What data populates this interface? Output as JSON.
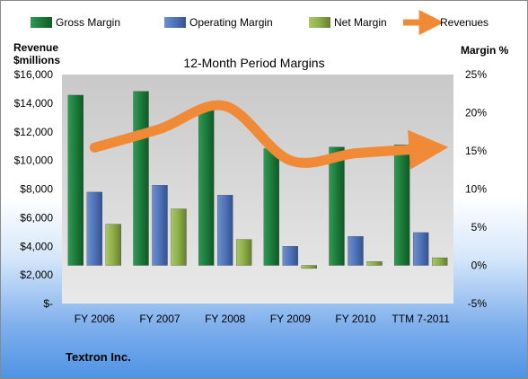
{
  "chart_data": {
    "type": "bar",
    "title": "12-Month Period Margins",
    "footer": "Textron Inc.",
    "categories": [
      "FY 2006",
      "FY 2007",
      "FY 2008",
      "FY 2009",
      "FY 2010",
      "TTM 7-2011"
    ],
    "left_axis": {
      "title_line1": "Revenue",
      "title_line2": "$millions",
      "range": [
        0,
        16000
      ],
      "ticks": [
        "$-",
        "$2,000",
        "$4,000",
        "$6,000",
        "$8,000",
        "$10,000",
        "$12,000",
        "$14,000",
        "$16,000"
      ]
    },
    "right_axis": {
      "title": "Margin %",
      "range": [
        -5,
        25
      ],
      "ticks": [
        "-5%",
        "0%",
        "5%",
        "10%",
        "15%",
        "20%",
        "25%"
      ]
    },
    "series": [
      {
        "name": "Gross Margin",
        "type": "bar",
        "axis": "right",
        "color": "#1f7a3c",
        "values": [
          22.3,
          22.8,
          20.5,
          15.3,
          15.5,
          15.8
        ]
      },
      {
        "name": "Operating Margin",
        "type": "bar",
        "axis": "right",
        "color": "#4f73b8",
        "values": [
          9.6,
          10.5,
          9.2,
          2.5,
          3.8,
          4.3
        ]
      },
      {
        "name": "Net Margin",
        "type": "bar",
        "axis": "right",
        "color": "#8cad48",
        "values": [
          5.4,
          7.4,
          3.4,
          -0.4,
          0.5,
          1.0
        ]
      },
      {
        "name": "Revenues",
        "type": "line",
        "axis": "left",
        "color": "#f08a36",
        "values": [
          10900,
          12200,
          13800,
          10000,
          10500,
          10800
        ]
      }
    ],
    "legend": {
      "position": "top"
    },
    "grid": false
  }
}
